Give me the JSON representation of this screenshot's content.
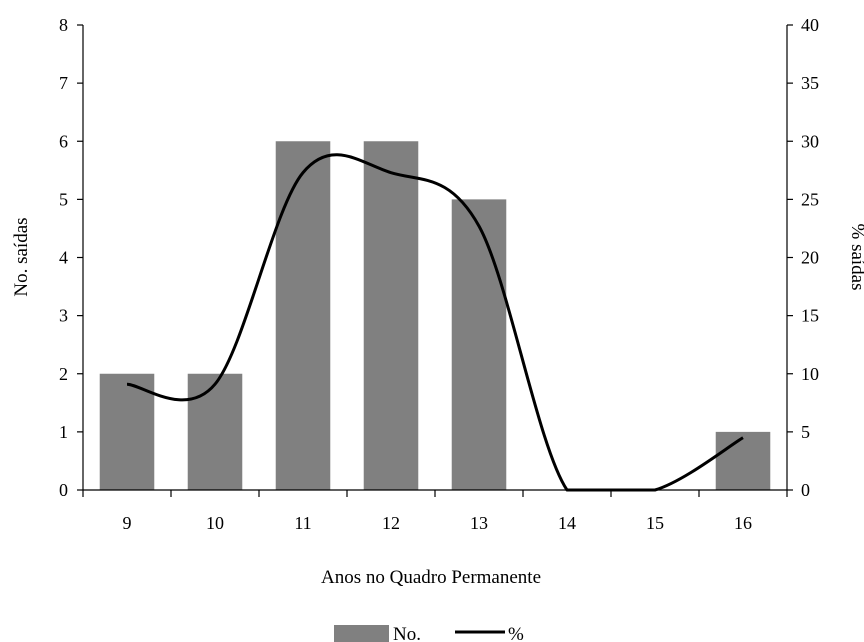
{
  "chart_data": {
    "type": "bar",
    "title": "",
    "xlabel": "Anos no Quadro Permanente",
    "ylabel_left": "No. saídas",
    "ylabel_right": "% saídas",
    "categories": [
      "9",
      "10",
      "11",
      "12",
      "13",
      "14",
      "15",
      "16"
    ],
    "y_left_lim": [
      0,
      8
    ],
    "y_left_ticks": [
      "0",
      "1",
      "2",
      "3",
      "4",
      "5",
      "6",
      "7",
      "8"
    ],
    "y_right_lim": [
      0,
      40
    ],
    "y_right_ticks": [
      "0",
      "5",
      "10",
      "15",
      "20",
      "25",
      "30",
      "35",
      "40"
    ],
    "series": [
      {
        "name": "No.",
        "type": "bar",
        "axis": "left",
        "color": "#808080",
        "values": [
          2,
          2,
          6,
          6,
          5,
          0,
          0,
          1
        ]
      },
      {
        "name": "%",
        "type": "line",
        "axis": "right",
        "color": "#000000",
        "values": [
          9.1,
          9.1,
          27.3,
          27.3,
          22.7,
          0,
          0,
          4.5
        ]
      }
    ],
    "legend_position": "bottom-center",
    "grid": false
  }
}
